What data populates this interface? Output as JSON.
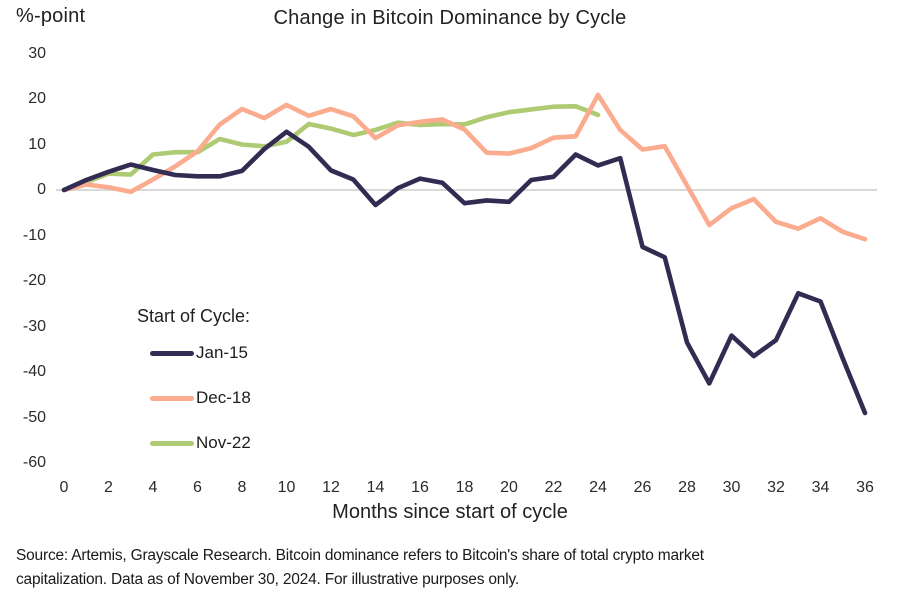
{
  "chart_data": {
    "type": "line",
    "title": "Change in Bitcoin Dominance by Cycle",
    "ylabel": "%-point",
    "xlabel": "Months since start of cycle",
    "xlim": [
      0,
      36
    ],
    "ylim": [
      -60,
      30
    ],
    "x_ticks": [
      0,
      2,
      4,
      6,
      8,
      10,
      12,
      14,
      16,
      18,
      20,
      22,
      24,
      26,
      28,
      30,
      32,
      34,
      36
    ],
    "y_ticks": [
      30,
      20,
      10,
      0,
      -10,
      -20,
      -30,
      -40,
      -50,
      -60
    ],
    "grid": "horizontal-zero-line-only",
    "zero_line_value": 0,
    "legend_position": "inside-left",
    "legend_title": "Start of Cycle:",
    "series": [
      {
        "name": "Jan-15",
        "color": "#322c52",
        "months": [
          0,
          1,
          2,
          3,
          4,
          5,
          6,
          7,
          8,
          9,
          10,
          11,
          12,
          13,
          14,
          15,
          16,
          17,
          18,
          19,
          20,
          21,
          22,
          23,
          24,
          25,
          26,
          27,
          28,
          29,
          30,
          31,
          32,
          33,
          34,
          35,
          36
        ],
        "values": [
          0,
          2.2,
          4.0,
          5.6,
          4.4,
          3.3,
          3.0,
          3.0,
          4.2,
          9.0,
          12.8,
          9.5,
          4.3,
          2.3,
          -3.3,
          0.4,
          2.5,
          1.6,
          -2.9,
          -2.3,
          -2.6,
          2.2,
          2.9,
          7.8,
          5.4,
          7.0,
          -12.5,
          -14.8,
          -33.5,
          -42.5,
          -32.0,
          -36.5,
          -33.0,
          -22.7,
          -24.5,
          -37.0,
          -49.0
        ]
      },
      {
        "name": "Dec-18",
        "color": "#fbab8e",
        "months": [
          0,
          1,
          2,
          3,
          4,
          5,
          6,
          7,
          8,
          9,
          10,
          11,
          12,
          13,
          14,
          15,
          16,
          17,
          18,
          19,
          20,
          21,
          22,
          23,
          24,
          25,
          26,
          27,
          28,
          29,
          30,
          31,
          32,
          33,
          34,
          35,
          36
        ],
        "values": [
          0,
          1.2,
          0.6,
          -0.4,
          2.3,
          5.2,
          8.5,
          14.4,
          17.8,
          15.8,
          18.7,
          16.3,
          17.8,
          16.2,
          11.4,
          14.2,
          15.0,
          15.5,
          13.3,
          8.2,
          8.0,
          9.2,
          11.5,
          11.8,
          20.9,
          13.2,
          8.9,
          9.6,
          1.0,
          -7.7,
          -4.0,
          -2.0,
          -7.0,
          -8.5,
          -6.2,
          -9.2,
          -10.8
        ]
      },
      {
        "name": "Nov-22",
        "color": "#aeca73",
        "months": [
          0,
          1,
          2,
          3,
          4,
          5,
          6,
          7,
          8,
          9,
          10,
          11,
          12,
          13,
          14,
          15,
          16,
          17,
          18,
          19,
          20,
          21,
          22,
          23,
          24
        ],
        "values": [
          0,
          1.7,
          3.6,
          3.4,
          7.8,
          8.3,
          8.3,
          11.2,
          10.0,
          9.6,
          10.6,
          14.5,
          13.5,
          12.1,
          13.2,
          14.8,
          14.3,
          14.5,
          14.4,
          16.0,
          17.1,
          17.7,
          18.3,
          18.4,
          16.5
        ]
      }
    ]
  },
  "colors": {
    "zero_line": "#d9d9d9",
    "text": "#1f1f1f"
  },
  "footer": {
    "lines": [
      "Source: Artemis, Grayscale Research. Bitcoin dominance refers to Bitcoin's share of total crypto market",
      "capitalization. Data as of November 30, 2024. For illustrative purposes only."
    ]
  }
}
